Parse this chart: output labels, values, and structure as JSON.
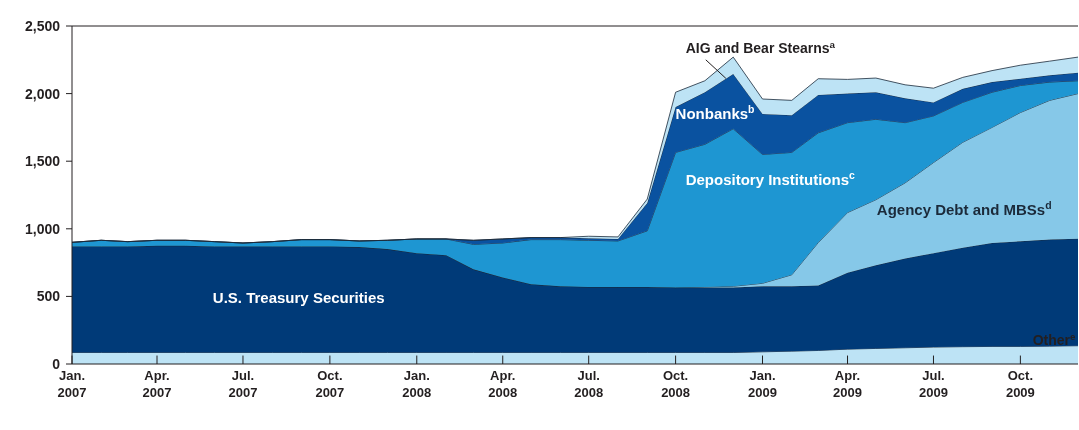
{
  "chart_data": {
    "type": "area",
    "stacked": true,
    "x": [
      "2007-01",
      "2007-02",
      "2007-03",
      "2007-04",
      "2007-05",
      "2007-06",
      "2007-07",
      "2007-08",
      "2007-09",
      "2007-10",
      "2007-11",
      "2007-12",
      "2008-01",
      "2008-02",
      "2008-03",
      "2008-04",
      "2008-05",
      "2008-06",
      "2008-07",
      "2008-08",
      "2008-09",
      "2008-10",
      "2008-11",
      "2008-12",
      "2009-01",
      "2009-02",
      "2009-03",
      "2009-04",
      "2009-05",
      "2009-06",
      "2009-07",
      "2009-08",
      "2009-09",
      "2009-10",
      "2009-11",
      "2009-12"
    ],
    "series": [
      {
        "name": "Other$^{e}$",
        "color": "#bde3f5",
        "values": [
          85,
          85,
          85,
          85,
          85,
          85,
          85,
          85,
          85,
          85,
          85,
          85,
          85,
          85,
          85,
          85,
          85,
          85,
          85,
          85,
          85,
          85,
          85,
          85,
          90,
          95,
          100,
          110,
          115,
          120,
          125,
          128,
          130,
          130,
          132,
          135
        ]
      },
      {
        "name": "U.S. Treasury Securities",
        "color": "#003a78",
        "values": [
          785,
          785,
          785,
          790,
          790,
          785,
          785,
          785,
          785,
          785,
          780,
          765,
          735,
          720,
          615,
          555,
          505,
          490,
          485,
          485,
          485,
          480,
          480,
          480,
          485,
          480,
          480,
          565,
          615,
          660,
          695,
          732,
          765,
          777,
          788,
          792
        ]
      },
      {
        "name": "Agency Debt and MBSs$^{d}$",
        "color": "#86c8e8",
        "values": [
          0,
          0,
          0,
          0,
          0,
          0,
          0,
          0,
          0,
          0,
          0,
          0,
          0,
          0,
          0,
          0,
          0,
          0,
          0,
          0,
          0,
          0,
          5,
          10,
          22,
          85,
          318,
          445,
          485,
          560,
          670,
          780,
          855,
          953,
          1030,
          1073
        ]
      },
      {
        "name": "Depository Institutions$^{c}$",
        "color": "#1e96d2",
        "values": [
          30,
          45,
          35,
          40,
          40,
          35,
          25,
          35,
          50,
          50,
          45,
          65,
          105,
          120,
          185,
          255,
          330,
          345,
          345,
          340,
          415,
          1000,
          1055,
          1165,
          953,
          905,
          812,
          665,
          595,
          445,
          345,
          295,
          260,
          200,
          135,
          95
        ]
      },
      {
        "name": "Nonbanks$^{b}$",
        "color": "#0a52a0",
        "values": [
          0,
          0,
          0,
          0,
          0,
          0,
          0,
          0,
          0,
          0,
          0,
          0,
          0,
          0,
          30,
          30,
          15,
          15,
          15,
          15,
          205,
          335,
          385,
          405,
          300,
          275,
          280,
          215,
          200,
          180,
          100,
          100,
          75,
          50,
          50,
          60
        ]
      },
      {
        "name": "AIG and Bear Stearns$^{a}$",
        "color": "#bde3f5",
        "values": [
          0,
          0,
          0,
          0,
          0,
          0,
          0,
          0,
          0,
          0,
          0,
          0,
          0,
          0,
          0,
          0,
          0,
          0,
          15,
          15,
          30,
          110,
          85,
          125,
          110,
          110,
          120,
          105,
          105,
          100,
          105,
          85,
          85,
          100,
          105,
          115
        ]
      }
    ],
    "xlim": [
      "2007-01",
      "2009-12"
    ],
    "xticks": [
      {
        "value": "2007-01",
        "label": "Jan.\n2007"
      },
      {
        "value": "2007-04",
        "label": "Apr.\n2007"
      },
      {
        "value": "2007-07",
        "label": "Jul.\n2007"
      },
      {
        "value": "2007-10",
        "label": "Oct.\n2007"
      },
      {
        "value": "2008-01",
        "label": "Jan.\n2008"
      },
      {
        "value": "2008-04",
        "label": "Apr.\n2008"
      },
      {
        "value": "2008-07",
        "label": "Jul.\n2008"
      },
      {
        "value": "2008-10",
        "label": "Oct.\n2008"
      },
      {
        "value": "2009-01",
        "label": "Jan.\n2009"
      },
      {
        "value": "2009-04",
        "label": "Apr.\n2009"
      },
      {
        "value": "2009-07",
        "label": "Jul.\n2009"
      },
      {
        "value": "2009-10",
        "label": "Oct.\n2009"
      }
    ],
    "ylim": [
      0,
      2500
    ],
    "yticks": [
      {
        "value": 0,
        "label": "0"
      },
      {
        "value": 500,
        "label": "500"
      },
      {
        "value": 1000,
        "label": "1,000"
      },
      {
        "value": 1500,
        "label": "1,500"
      },
      {
        "value": 2000,
        "label": "2,000"
      },
      {
        "value": 2500,
        "label": "2,500"
      }
    ]
  }
}
